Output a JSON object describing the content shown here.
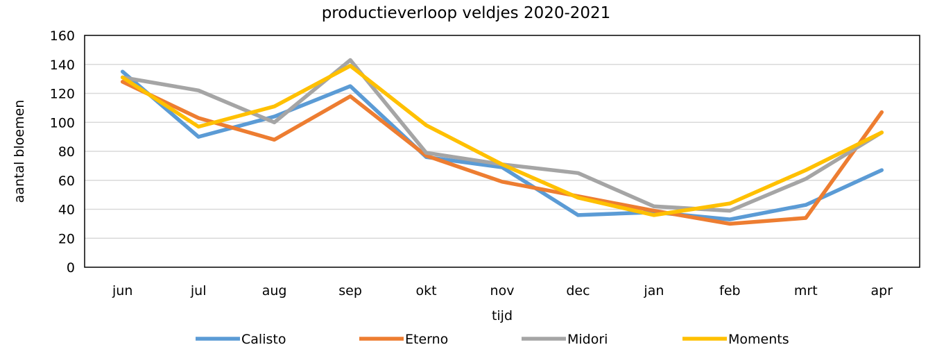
{
  "chart_data": {
    "type": "line",
    "title": "productieverloop veldjes 2020-2021",
    "xlabel": "tijd",
    "ylabel": "aantal bloemen",
    "categories": [
      "jun",
      "jul",
      "aug",
      "sep",
      "okt",
      "nov",
      "dec",
      "jan",
      "feb",
      "mrt",
      "apr"
    ],
    "ylim": [
      0,
      160
    ],
    "yticks": [
      0,
      20,
      40,
      60,
      80,
      100,
      120,
      140,
      160
    ],
    "grid": true,
    "legend_position": "bottom",
    "series": [
      {
        "name": "Calisto",
        "color": "#5b9bd5",
        "values": [
          135,
          90,
          104,
          125,
          76,
          69,
          36,
          38,
          33,
          43,
          67
        ]
      },
      {
        "name": "Eterno",
        "color": "#ed7d31",
        "values": [
          128,
          103,
          88,
          118,
          77,
          59,
          49,
          39,
          30,
          34,
          107
        ]
      },
      {
        "name": "Midori",
        "color": "#a5a5a5",
        "values": [
          131,
          122,
          100,
          143,
          79,
          71,
          65,
          42,
          39,
          61,
          93
        ]
      },
      {
        "name": "Moments",
        "color": "#ffc000",
        "values": [
          131,
          97,
          111,
          139,
          98,
          71,
          48,
          36,
          44,
          67,
          93
        ]
      }
    ]
  }
}
